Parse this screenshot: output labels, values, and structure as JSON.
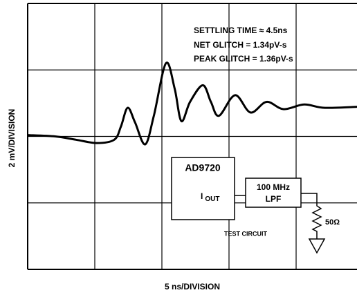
{
  "chart_data": {
    "type": "line",
    "x_label": "5 ns/DIVISION",
    "y_label": "2 mV/DIVISION",
    "xlim": [
      0,
      5
    ],
    "ylim": [
      -2,
      2
    ],
    "xticks": [
      1,
      2,
      3,
      4
    ],
    "yticks": [
      -1,
      0,
      1
    ],
    "grid": true,
    "tick_labels": false,
    "series": [
      {
        "color": "#000000",
        "x": [
          0,
          0.41,
          0.72,
          1.03,
          1.29,
          1.39,
          1.49,
          1.6,
          1.75,
          1.88,
          2.06,
          2.19,
          2.29,
          2.42,
          2.61,
          2.73,
          2.85,
          3.09,
          3.32,
          3.56,
          3.81,
          4.12,
          4.43,
          5
        ],
        "values": [
          0.02,
          0,
          -0.05,
          -0.1,
          -0.05,
          0.15,
          0.43,
          0.21,
          -0.12,
          0.31,
          1.1,
          0.72,
          0.23,
          0.52,
          0.77,
          0.52,
          0.31,
          0.62,
          0.36,
          0.52,
          0.41,
          0.48,
          0.43,
          0.45
        ]
      }
    ],
    "annotations": [
      "SETTLING TIME ≈ 4.5ns",
      "NET GLITCH = 1.34pV-s",
      "PEAK GLITCH = 1.36pV-s"
    ],
    "circuit": {
      "chip": "AD9720",
      "output": "I",
      "output_sub": "OUT",
      "filter_freq": "100 MHz",
      "filter_type": "LPF",
      "load": "50Ω",
      "title": "TEST CIRCUIT"
    }
  }
}
